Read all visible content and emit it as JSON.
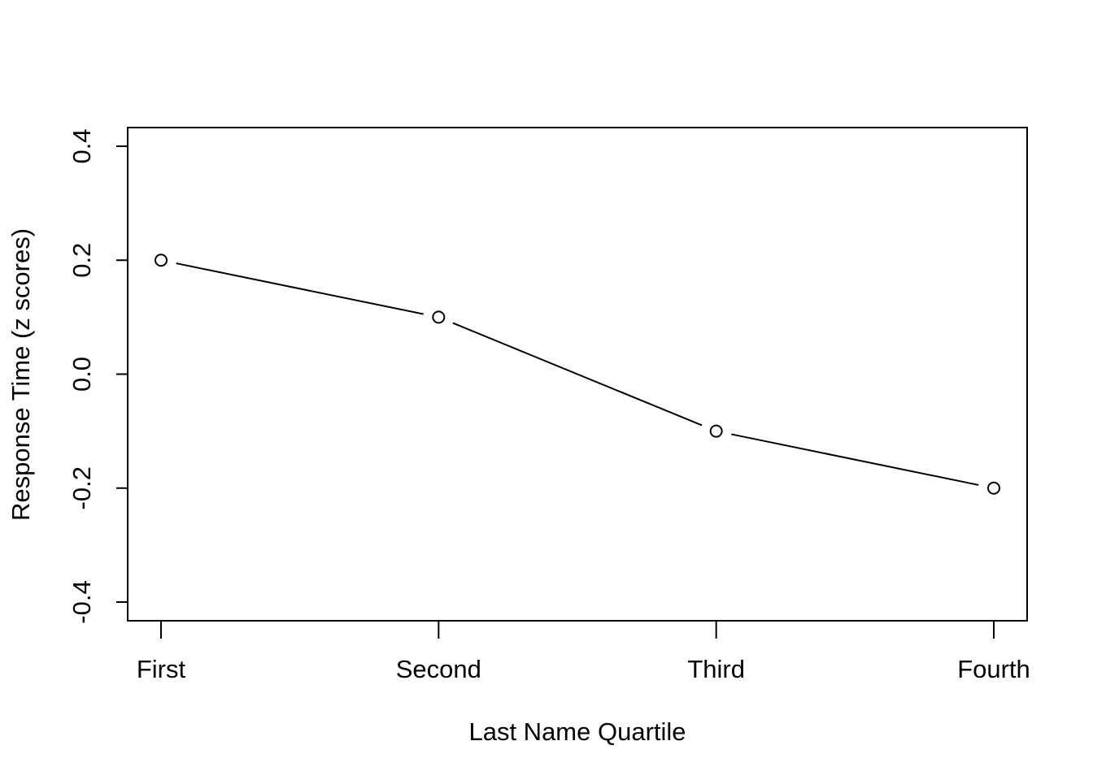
{
  "chart_data": {
    "type": "line",
    "categories": [
      "First",
      "Second",
      "Third",
      "Fourth"
    ],
    "series": [
      {
        "values": [
          0.2,
          0.1,
          -0.1,
          -0.2
        ]
      }
    ],
    "title": "",
    "xlabel": "Last Name Quartile",
    "ylabel": "Response Time (z scores)",
    "ylim": [
      -0.4,
      0.4
    ],
    "yticks": [
      "-0.4",
      "-0.2",
      "0.0",
      "0.2",
      "0.4"
    ],
    "grid": false,
    "markers": "open-circle",
    "colors": {
      "line": "#000000",
      "marker_fill": "#ffffff",
      "axis": "#000000"
    }
  }
}
